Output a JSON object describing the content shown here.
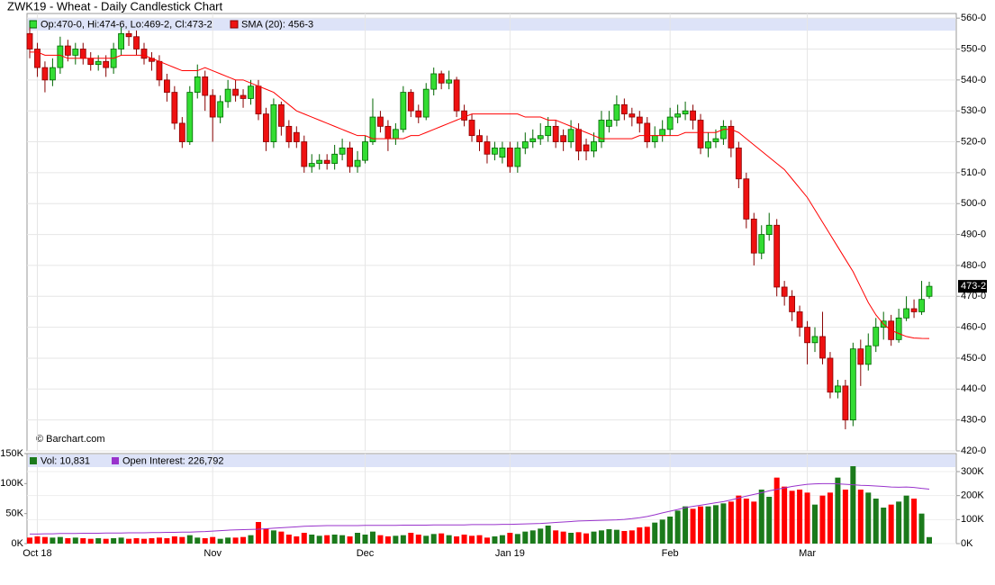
{
  "chart_data": {
    "type": "candlestick",
    "title": "ZWK19 - Wheat - Daily Candlestick Chart",
    "ohlc_legend": "Op:470-0, Hi:474-6, Lo:469-2, Cl:473-2",
    "source": "© Barchart.com",
    "up_color": "#33dd33",
    "down_color": "#ee1111",
    "categories": [
      null,
      "Oct 18",
      null,
      null,
      null,
      null,
      null,
      null,
      null,
      null,
      null,
      null,
      null,
      null,
      null,
      null,
      null,
      null,
      null,
      null,
      null,
      null,
      null,
      null,
      "Nov",
      null,
      null,
      null,
      null,
      null,
      null,
      null,
      null,
      null,
      null,
      null,
      null,
      null,
      null,
      null,
      null,
      null,
      null,
      null,
      "Dec",
      null,
      null,
      null,
      null,
      null,
      null,
      null,
      null,
      null,
      null,
      null,
      null,
      null,
      null,
      null,
      null,
      null,
      null,
      "Jan 19",
      null,
      null,
      null,
      null,
      null,
      null,
      null,
      null,
      null,
      null,
      null,
      null,
      null,
      null,
      null,
      null,
      null,
      null,
      null,
      null,
      "Feb",
      null,
      null,
      null,
      null,
      null,
      null,
      null,
      null,
      null,
      null,
      null,
      null,
      null,
      null,
      null,
      null,
      null,
      "Mar",
      null,
      null,
      null,
      null,
      null,
      null,
      null,
      null,
      null,
      null,
      null,
      null,
      null,
      null,
      null,
      null
    ],
    "open": [
      555,
      550,
      544,
      540,
      544,
      551,
      548,
      550,
      547,
      545,
      546,
      544,
      550,
      555,
      554,
      550,
      547,
      546,
      540,
      536,
      526,
      520,
      536,
      541,
      535,
      528,
      533,
      537,
      535,
      534,
      538,
      529,
      520,
      532,
      525,
      523,
      520,
      512,
      513,
      514,
      513,
      516,
      518,
      512,
      514,
      520,
      528,
      525,
      521,
      524,
      536,
      530,
      528,
      537,
      542,
      539,
      540,
      530,
      527,
      522,
      520,
      516,
      515,
      518,
      512,
      518,
      520,
      521,
      522,
      525,
      522,
      520,
      524,
      519,
      517,
      520,
      525,
      527,
      532,
      529,
      528,
      526,
      520,
      522,
      524,
      528,
      529,
      530,
      527,
      518,
      520,
      521,
      525,
      518,
      508,
      495,
      484,
      490,
      493,
      473,
      470,
      465,
      460,
      455,
      457,
      450,
      439,
      441,
      430,
      453,
      448,
      454,
      460,
      462,
      456,
      463,
      466,
      465,
      470
    ],
    "high": [
      557,
      552,
      546,
      547,
      554,
      553,
      552,
      552,
      549,
      548,
      548,
      552,
      557,
      556,
      556,
      552,
      549,
      548,
      542,
      538,
      528,
      538,
      545,
      543,
      537,
      535,
      540,
      540,
      537,
      540,
      540,
      531,
      534,
      533,
      527,
      525,
      522,
      516,
      516,
      516,
      519,
      521,
      520,
      517,
      522,
      534,
      530,
      527,
      526,
      538,
      537,
      532,
      539,
      544,
      543,
      543,
      541,
      532,
      529,
      524,
      522,
      520,
      520,
      520,
      520,
      523,
      524,
      526,
      528,
      527,
      524,
      527,
      526,
      521,
      523,
      530,
      530,
      535,
      534,
      531,
      530,
      528,
      525,
      527,
      531,
      532,
      533,
      532,
      529,
      523,
      524,
      527,
      527,
      520,
      510,
      497,
      493,
      497,
      495,
      475,
      472,
      467,
      462,
      460,
      465,
      452,
      443,
      443,
      455,
      456,
      458,
      463,
      465,
      464,
      466,
      470,
      469,
      475,
      474.75
    ],
    "low": [
      547,
      541,
      536,
      538,
      542,
      546,
      545,
      545,
      543,
      543,
      541,
      542,
      548,
      551,
      548,
      545,
      543,
      538,
      533,
      524,
      518,
      519,
      534,
      530,
      520,
      526,
      531,
      533,
      531,
      532,
      527,
      517,
      518,
      522,
      518,
      518,
      510,
      510,
      511,
      511,
      511,
      514,
      510,
      510,
      513,
      519,
      523,
      517,
      519,
      523,
      528,
      526,
      527,
      535,
      537,
      537,
      528,
      525,
      520,
      517,
      513,
      514,
      513,
      510,
      510,
      516,
      518,
      519,
      520,
      518,
      517,
      518,
      514,
      514,
      515,
      518,
      523,
      525,
      527,
      525,
      523,
      518,
      518,
      520,
      522,
      526,
      527,
      524,
      516,
      515,
      518,
      519,
      515,
      505,
      492,
      480,
      482,
      488,
      470,
      467,
      462,
      457,
      448,
      452,
      448,
      437,
      437,
      427,
      428,
      441,
      446,
      452,
      456,
      454,
      455,
      462,
      463,
      464,
      469.25
    ],
    "close": [
      550,
      544,
      540,
      544,
      551,
      548,
      550,
      547,
      545,
      546,
      544,
      550,
      555,
      554,
      550,
      547,
      546,
      540,
      536,
      526,
      520,
      536,
      541,
      535,
      528,
      533,
      537,
      535,
      534,
      538,
      529,
      520,
      532,
      525,
      520,
      520,
      512,
      513,
      514,
      513,
      516,
      518,
      512,
      514,
      520,
      528,
      525,
      521,
      524,
      536,
      530,
      528,
      537,
      542,
      539,
      540,
      530,
      527,
      522,
      520,
      516,
      518,
      518,
      512,
      518,
      520,
      521,
      522,
      525,
      520,
      520,
      524,
      517,
      517,
      520,
      527,
      527,
      532,
      529,
      528,
      526,
      520,
      522,
      524,
      528,
      529,
      530,
      527,
      518,
      520,
      521,
      525,
      518,
      508,
      495,
      484,
      490,
      493,
      473,
      470,
      465,
      460,
      455,
      457,
      450,
      439,
      441,
      430,
      453,
      448,
      454,
      460,
      462,
      456,
      463,
      466,
      465,
      469,
      473.25
    ],
    "last_price_label": "473-2",
    "ylim": [
      420,
      561.5
    ],
    "yticks": [
      {
        "value": 420,
        "label": "420-0"
      },
      {
        "value": 430,
        "label": "430-0"
      },
      {
        "value": 440,
        "label": "440-0"
      },
      {
        "value": 450,
        "label": "450-0"
      },
      {
        "value": 460,
        "label": "460-0"
      },
      {
        "value": 470,
        "label": "470-0"
      },
      {
        "value": 480,
        "label": "480-0"
      },
      {
        "value": 490,
        "label": "490-0"
      },
      {
        "value": 500,
        "label": "500-0"
      },
      {
        "value": 510,
        "label": "510-0"
      },
      {
        "value": 520,
        "label": "520-0"
      },
      {
        "value": 530,
        "label": "530-0"
      },
      {
        "value": 540,
        "label": "540-0"
      },
      {
        "value": 550,
        "label": "550-0"
      },
      {
        "value": 560,
        "label": "560-0"
      }
    ],
    "grid": true,
    "sma": {
      "name": "SMA (20): 456-3",
      "color": "#ff0000",
      "values": [
        549,
        549,
        548,
        548,
        548,
        547,
        547,
        547,
        547,
        547,
        547,
        547,
        548,
        548,
        548,
        548,
        547,
        546,
        545,
        544,
        543,
        543,
        543,
        544,
        543,
        542,
        541,
        540,
        540,
        539,
        538,
        537,
        536,
        534,
        532,
        530,
        529,
        528,
        527,
        526,
        525,
        524,
        523,
        522,
        522,
        521,
        521,
        521,
        521,
        521,
        522,
        522,
        523,
        524,
        525,
        526,
        527,
        528,
        529,
        529,
        529,
        529,
        529,
        529,
        529,
        528,
        528,
        528,
        527,
        527,
        526,
        525,
        524,
        523,
        522,
        521,
        521,
        521,
        521,
        521,
        522,
        522,
        522,
        522,
        522,
        522,
        523,
        523,
        523,
        523,
        523,
        524,
        524,
        523,
        521,
        519,
        517,
        515,
        513,
        511,
        508,
        505,
        502,
        498,
        494,
        490,
        486,
        482,
        478,
        473,
        468,
        464,
        461,
        459,
        458,
        457,
        456.5,
        456.4,
        456.375
      ]
    },
    "volume": {
      "name": "Vol: 10,831",
      "up_color": "#1b7a1b",
      "down_color": "#ff0000",
      "ylim": [
        0,
        150000
      ],
      "yticks": [
        {
          "value": 0,
          "label": "0K"
        },
        {
          "value": 50000,
          "label": "50K"
        },
        {
          "value": 100000,
          "label": "100K"
        },
        {
          "value": 150000,
          "label": "150K"
        }
      ],
      "values": [
        10000,
        12000,
        11000,
        10000,
        11000,
        9000,
        10000,
        9000,
        8000,
        9000,
        8000,
        9000,
        10000,
        8000,
        9000,
        8000,
        9000,
        10000,
        9000,
        12000,
        11000,
        14000,
        10000,
        9000,
        11000,
        8000,
        10000,
        10000,
        11000,
        14000,
        36000,
        25000,
        22000,
        20000,
        15000,
        12000,
        18000,
        15000,
        13000,
        14000,
        15000,
        14000,
        12000,
        18000,
        15000,
        20000,
        14000,
        12000,
        13000,
        14000,
        18000,
        15000,
        13000,
        16000,
        17000,
        14000,
        12000,
        15000,
        13000,
        14000,
        10000,
        12000,
        14000,
        18000,
        16000,
        20000,
        22000,
        25000,
        30000,
        22000,
        20000,
        18000,
        19000,
        17000,
        20000,
        22000,
        24000,
        23000,
        21000,
        22000,
        27000,
        28000,
        35000,
        40000,
        45000,
        55000,
        62000,
        58000,
        62000,
        62000,
        64000,
        67000,
        70000,
        80000,
        75000,
        70000,
        90000,
        78000,
        110000,
        95000,
        88000,
        90000,
        85000,
        65000,
        80000,
        85000,
        110000,
        90000,
        129000,
        90000,
        85000,
        75000,
        60000,
        65000,
        70000,
        80000,
        75000,
        50000,
        10831
      ]
    },
    "open_interest": {
      "name": "Open Interest: 226,792",
      "color": "#9933cc",
      "axis": "y2",
      "y2lim": [
        0,
        375000
      ],
      "y2ticks": [
        {
          "value": 0,
          "label": "0K"
        },
        {
          "value": 100000,
          "label": "100K"
        },
        {
          "value": 200000,
          "label": "200K"
        },
        {
          "value": 300000,
          "label": "300K"
        }
      ],
      "values": [
        40000,
        40000,
        41000,
        41000,
        42000,
        42000,
        42000,
        43000,
        43000,
        43000,
        44000,
        44000,
        44000,
        45000,
        45000,
        45000,
        46000,
        46000,
        47000,
        47000,
        48000,
        48000,
        49000,
        50000,
        52000,
        54000,
        56000,
        57000,
        58000,
        59000,
        60000,
        62000,
        64000,
        66000,
        68000,
        70000,
        72000,
        73000,
        74000,
        75000,
        75000,
        75000,
        75000,
        75000,
        76000,
        76000,
        76000,
        76000,
        76000,
        77000,
        77000,
        77000,
        77000,
        78000,
        78000,
        78000,
        78000,
        78000,
        79000,
        79000,
        79000,
        79000,
        80000,
        80000,
        81000,
        82000,
        83000,
        84000,
        86000,
        88000,
        90000,
        92000,
        94000,
        95000,
        96000,
        97000,
        98000,
        99000,
        101000,
        104000,
        108000,
        113000,
        120000,
        128000,
        135000,
        142000,
        150000,
        155000,
        160000,
        165000,
        170000,
        175000,
        182000,
        190000,
        198000,
        205000,
        212000,
        220000,
        226000,
        232000,
        238000,
        243000,
        247000,
        249000,
        250000,
        250000,
        249000,
        247000,
        245000,
        243000,
        242000,
        240000,
        238000,
        236000,
        235000,
        236000,
        234000,
        230000,
        226792
      ]
    }
  }
}
